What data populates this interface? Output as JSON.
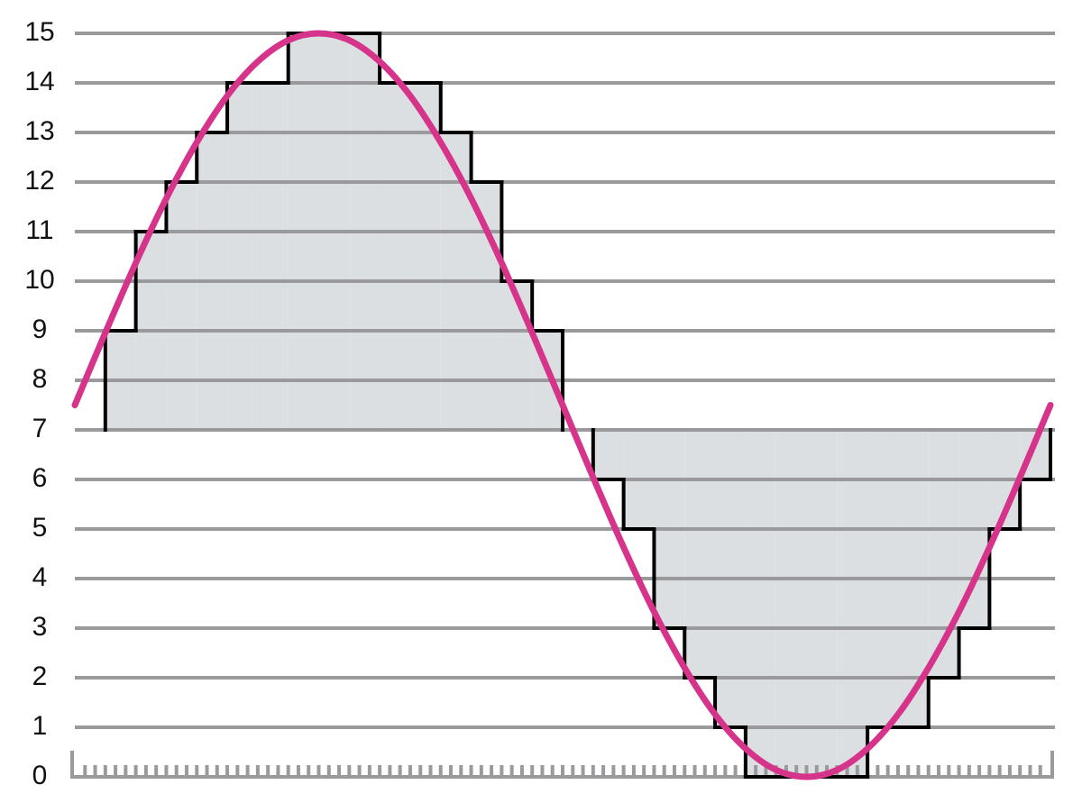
{
  "chart_data": {
    "type": "combo",
    "ylim": [
      0,
      15
    ],
    "yticks": [
      0,
      1,
      2,
      3,
      4,
      5,
      6,
      7,
      8,
      9,
      10,
      11,
      12,
      13,
      14,
      15
    ],
    "xlim": [
      0,
      96
    ],
    "xticks": [
      0,
      1,
      2,
      3,
      4,
      5,
      6,
      7,
      8,
      9,
      10,
      11,
      12,
      13,
      14,
      15,
      16,
      17,
      18,
      19,
      20,
      21,
      22,
      23,
      24,
      25,
      26,
      27,
      28,
      29,
      30,
      31,
      32,
      33,
      34,
      35,
      36,
      37,
      38,
      39,
      40,
      41,
      42,
      43,
      44,
      45,
      46,
      47,
      48,
      49,
      50,
      51,
      52,
      53,
      54,
      55,
      56,
      57,
      58,
      59,
      60,
      61,
      62,
      63,
      64,
      65,
      66,
      67,
      68,
      69,
      70,
      71,
      72,
      73,
      74,
      75,
      76,
      77,
      78,
      79,
      80,
      81,
      82,
      83,
      84,
      85,
      86,
      87,
      88,
      89,
      90,
      91,
      92,
      93,
      94,
      95,
      96
    ],
    "grid": true,
    "baseline": 7,
    "fill_color": "#dcdfe2",
    "series": [
      {
        "type": "step",
        "color": "#000000",
        "x": [
          0,
          3,
          6,
          9,
          12,
          15,
          18,
          21,
          24,
          27,
          30,
          33,
          36,
          39,
          42,
          45,
          48,
          51,
          54,
          57,
          60,
          63,
          66,
          69,
          72,
          75,
          78,
          81,
          84,
          87,
          90,
          93
        ],
        "values": [
          7,
          9,
          11,
          12,
          13,
          14,
          14,
          15,
          15,
          15,
          14,
          14,
          13,
          12,
          10,
          9,
          7,
          6,
          5,
          3,
          2,
          1,
          0,
          0,
          0,
          0,
          1,
          1,
          2,
          3,
          5,
          6
        ]
      },
      {
        "type": "line",
        "color": "#d6338a",
        "x": [
          0,
          3,
          6,
          9,
          12,
          15,
          18,
          21,
          24,
          27,
          30,
          33,
          36,
          39,
          42,
          45,
          48,
          51,
          54,
          57,
          60,
          63,
          66,
          69,
          72,
          75,
          78,
          81,
          84,
          87,
          90,
          93,
          96
        ],
        "values": [
          7.5,
          8.96,
          10.37,
          11.67,
          12.8,
          13.74,
          14.43,
          14.86,
          15,
          14.86,
          14.43,
          13.74,
          12.8,
          11.67,
          10.37,
          8.96,
          7.5,
          6.04,
          4.63,
          3.33,
          2.2,
          1.26,
          0.57,
          0.14,
          0,
          0.14,
          0.57,
          1.26,
          2.2,
          3.33,
          4.63,
          6.04,
          7.5
        ]
      }
    ]
  }
}
